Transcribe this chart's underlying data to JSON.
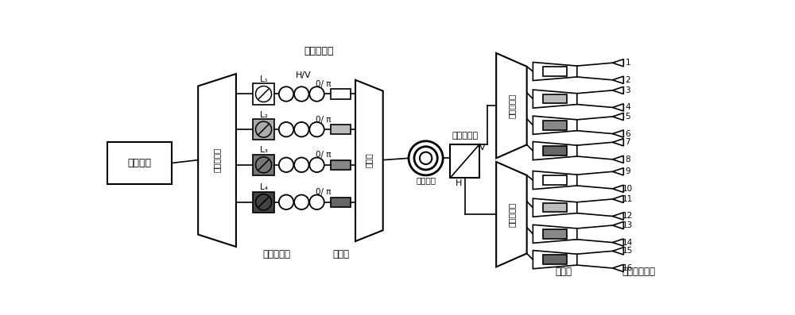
{
  "bg_color": "#ffffff",
  "line_color": "#000000",
  "labels": {
    "broadband_source": "宿谱光源",
    "wdm_demux_left": "波分复用器",
    "polarization_controller": "偏振控制器",
    "hv_label": "H/V",
    "attenuator_label": "可调衰减器",
    "phase_shifter_label": "移相器",
    "combiner": "合束器",
    "single_mode_fiber": "单模光纤",
    "pbs_label": "偏振分束器",
    "wdm_demux_top": "波分复用器",
    "wdm_demux_bottom": "波分复用器",
    "interferometer": "干涉仪",
    "spd": "单光子探测器",
    "V_label": "V",
    "H_label": "H",
    "L1": "L₁",
    "L2": "L₂",
    "L3": "L₃",
    "L4": "L₄"
  },
  "attenuator_grays": [
    "#ffffff",
    "#aaaaaa",
    "#777777",
    "#444444"
  ],
  "phase_grays": [
    "#ffffff",
    "#bbbbbb",
    "#888888",
    "#666666"
  ],
  "int_grays_top": [
    "#ffffff",
    "#bbbbbb",
    "#888888",
    "#666666"
  ],
  "int_grays_bot": [
    "#ffffff",
    "#bbbbbb",
    "#888888",
    "#666666"
  ]
}
